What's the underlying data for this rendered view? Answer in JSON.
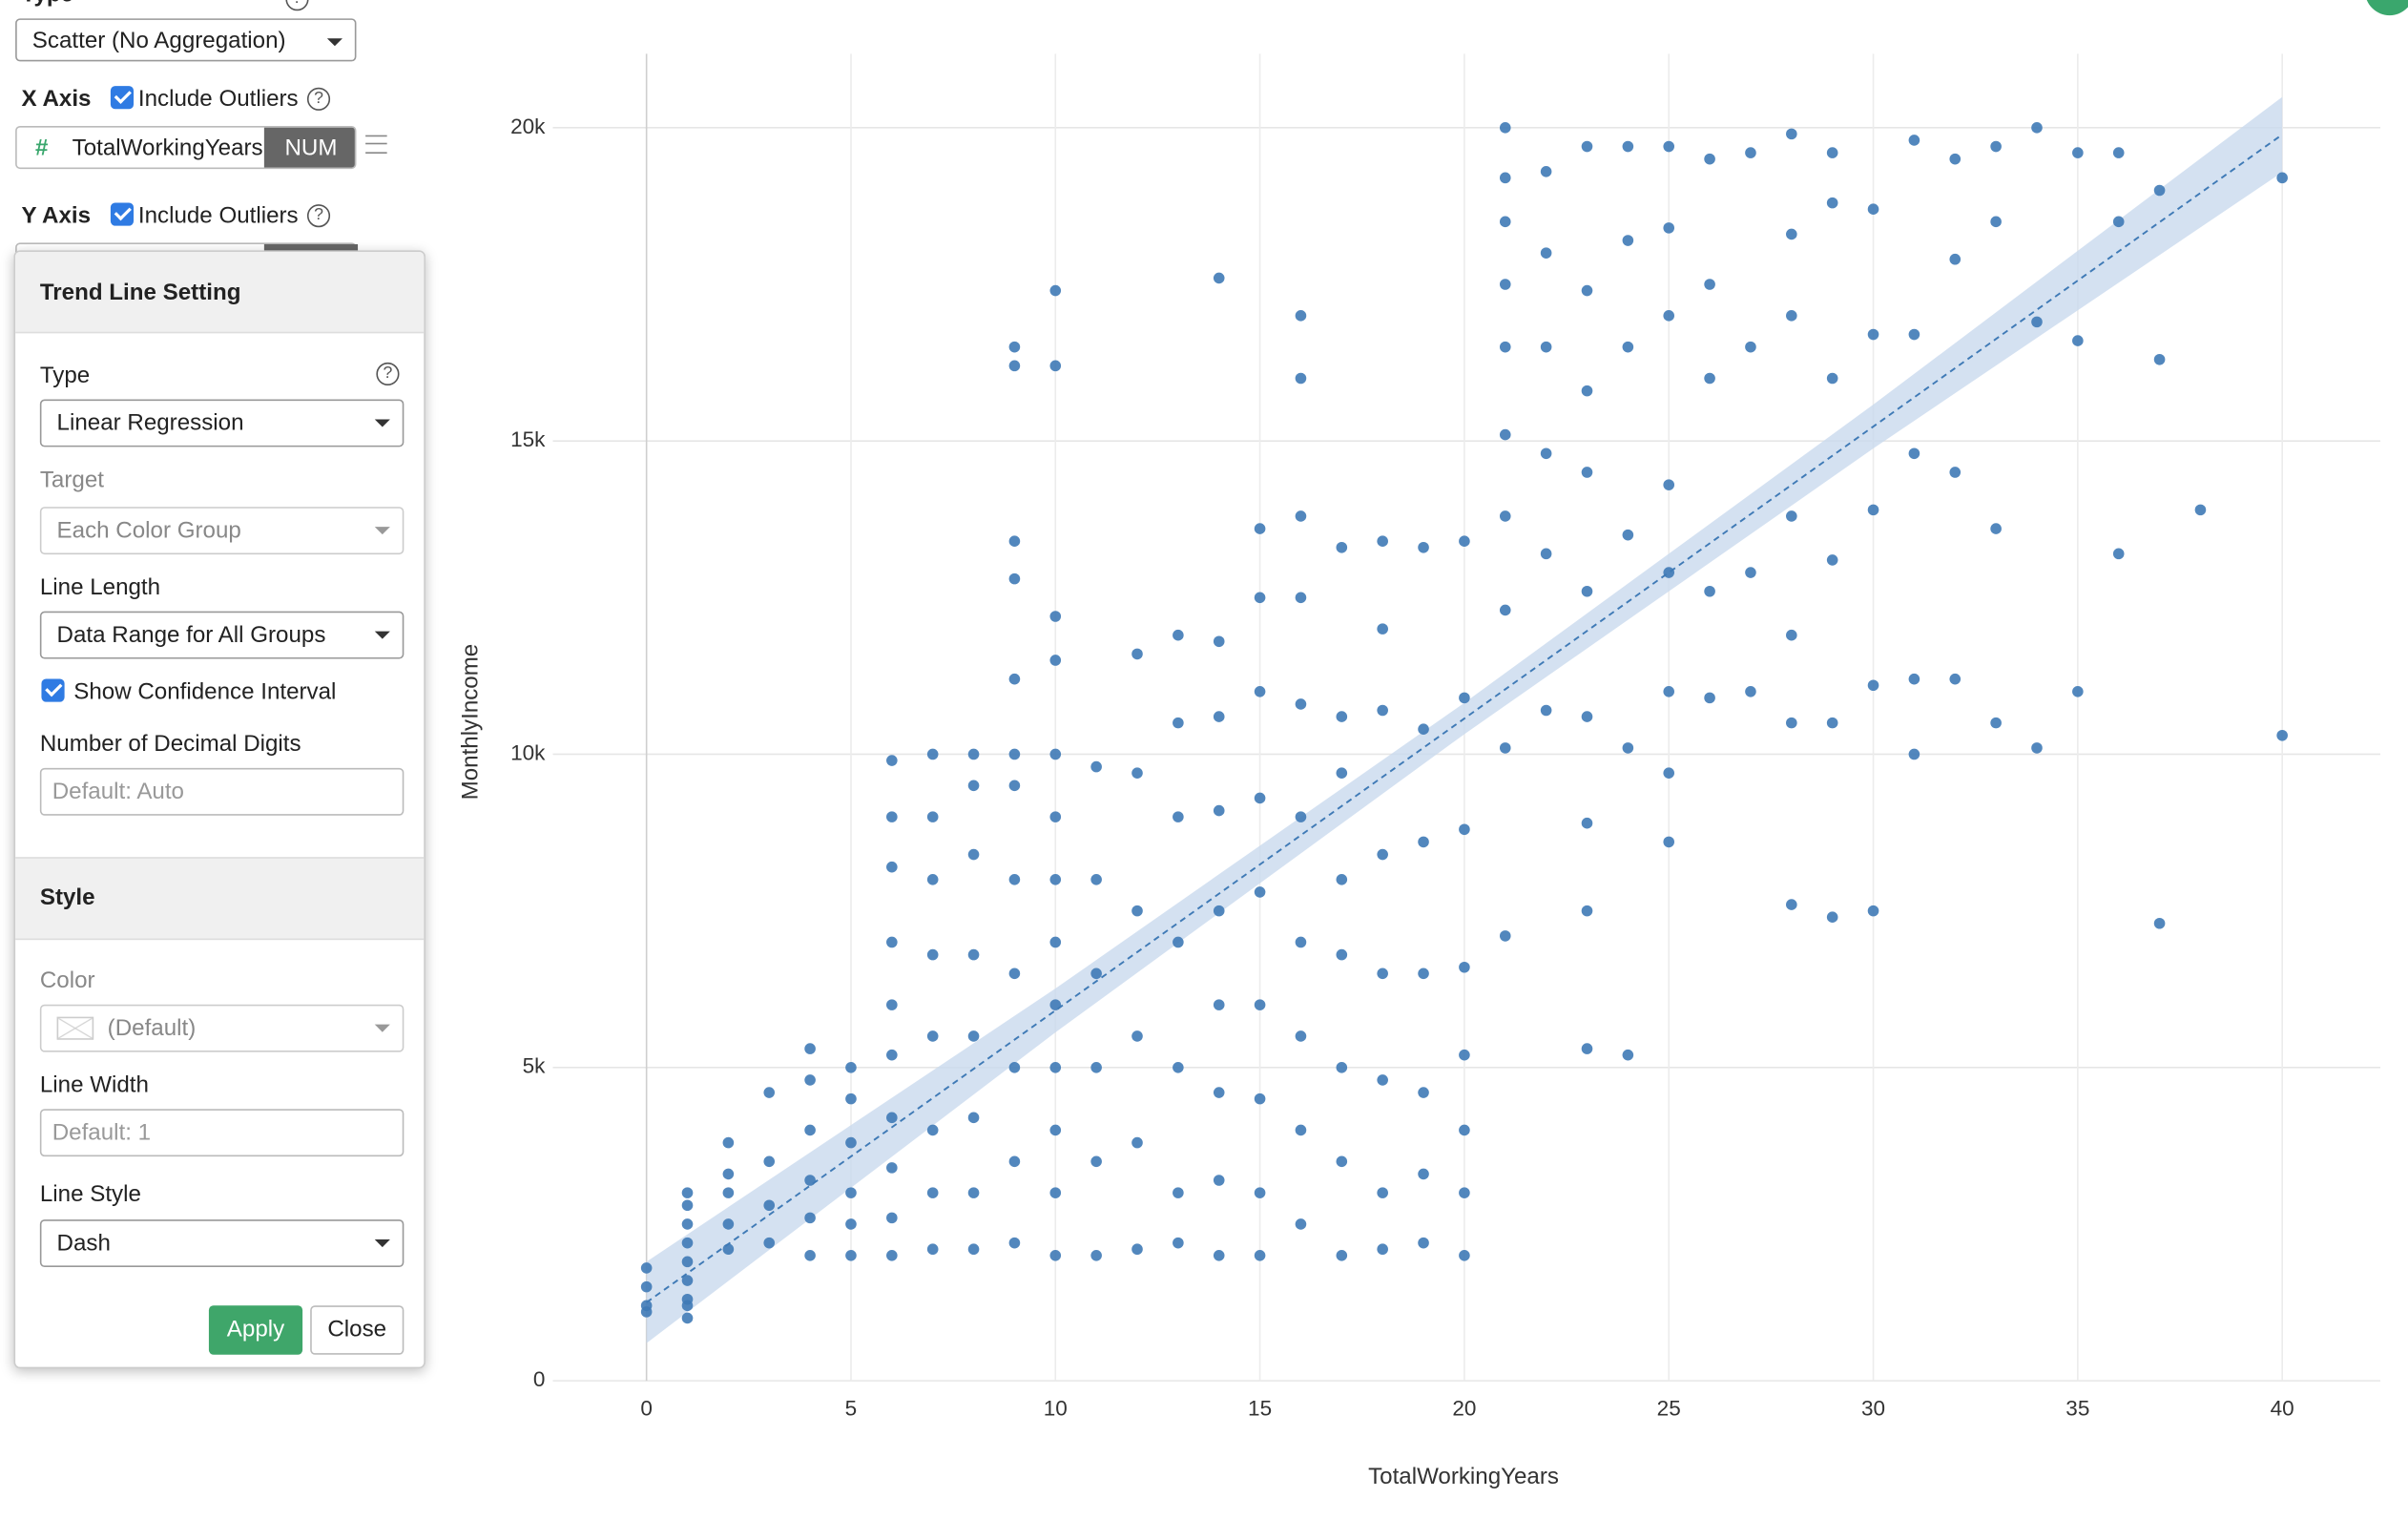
{
  "ui": {
    "type_label": "Type",
    "chart_type": "Scatter (No Aggregation)",
    "x_axis": {
      "label": "X Axis",
      "outliers": "Include Outliers",
      "column": "TotalWorkingYears",
      "badge": "NUM"
    },
    "y_axis": {
      "label": "Y Axis",
      "outliers": "Include Outliers"
    },
    "trend_panel": {
      "title": "Trend Line Setting",
      "type_label": "Type",
      "type_value": "Linear Regression",
      "target_label": "Target",
      "target_value": "Each Color Group",
      "length_label": "Line Length",
      "length_value": "Data Range for All Groups",
      "confidence": "Show Confidence Interval",
      "digits_label": "Number of Decimal Digits",
      "digits_placeholder": "Default: Auto",
      "style_title": "Style",
      "color_label": "Color",
      "color_value": "(Default)",
      "width_label": "Line Width",
      "width_placeholder": "Default: 1",
      "line_style_label": "Line Style",
      "line_style_value": "Dash",
      "apply": "Apply",
      "close": "Close"
    }
  },
  "chart_data": {
    "type": "scatter",
    "x_label": "TotalWorkingYears",
    "y_label": "MonthlyIncome",
    "color": "#3f7ab6",
    "grid": true,
    "xlim": [
      -2.29,
      42.4
    ],
    "ylim": [
      0,
      21180
    ],
    "xticks": [
      0,
      5,
      10,
      15,
      20,
      25,
      30,
      35,
      40
    ],
    "yticks": [
      0,
      {
        "value": 5000,
        "label": "5k"
      },
      {
        "value": 10000,
        "label": "10k"
      },
      {
        "value": 15000,
        "label": "15k"
      },
      {
        "value": 20000,
        "label": "20k"
      }
    ],
    "x": [
      0,
      0,
      0,
      0,
      1,
      1,
      1,
      1,
      1,
      1,
      1,
      1,
      1,
      2,
      2,
      2,
      2,
      2,
      3,
      3,
      3,
      3,
      4,
      4,
      4,
      4,
      4,
      4,
      5,
      5,
      5,
      5,
      5,
      5,
      6,
      6,
      6,
      6,
      6,
      6,
      6,
      6,
      6,
      6,
      7,
      7,
      7,
      7,
      7,
      7,
      7,
      7,
      8,
      8,
      8,
      8,
      8,
      8,
      8,
      8,
      9,
      9,
      9,
      9,
      9,
      9,
      9,
      9,
      9,
      9,
      9,
      9,
      10,
      10,
      10,
      10,
      10,
      10,
      10,
      10,
      10,
      10,
      10,
      10,
      10,
      11,
      11,
      11,
      11,
      11,
      11,
      12,
      12,
      12,
      12,
      12,
      12,
      13,
      13,
      13,
      13,
      13,
      13,
      13,
      14,
      14,
      14,
      14,
      14,
      14,
      14,
      14,
      14,
      15,
      15,
      15,
      15,
      15,
      15,
      15,
      15,
      15,
      16,
      16,
      16,
      16,
      16,
      16,
      16,
      16,
      16,
      16,
      17,
      17,
      17,
      17,
      17,
      17,
      17,
      17,
      18,
      18,
      18,
      18,
      18,
      18,
      18,
      18,
      19,
      19,
      19,
      19,
      19,
      19,
      19,
      20,
      20,
      20,
      20,
      20,
      20,
      20,
      20,
      21,
      21,
      21,
      21,
      21,
      21,
      21,
      21,
      21,
      21,
      22,
      22,
      22,
      22,
      22,
      22,
      23,
      23,
      23,
      23,
      23,
      23,
      23,
      23,
      23,
      24,
      24,
      24,
      24,
      24,
      24,
      25,
      25,
      25,
      25,
      25,
      25,
      25,
      25,
      26,
      26,
      26,
      26,
      26,
      27,
      27,
      27,
      27,
      28,
      28,
      28,
      28,
      28,
      28,
      28,
      29,
      29,
      29,
      29,
      29,
      29,
      30,
      30,
      30,
      30,
      30,
      31,
      31,
      31,
      31,
      31,
      32,
      32,
      32,
      32,
      33,
      33,
      33,
      33,
      34,
      34,
      34,
      35,
      35,
      35,
      36,
      36,
      36,
      37,
      37,
      37,
      38,
      40,
      40
    ],
    "values": [
      1200,
      1500,
      1800,
      1100,
      1000,
      1300,
      1600,
      1900,
      2200,
      2500,
      2800,
      3000,
      1200,
      2100,
      2500,
      3000,
      3300,
      3800,
      2200,
      2800,
      3500,
      4600,
      2000,
      2600,
      3200,
      4000,
      4800,
      5300,
      2000,
      2500,
      3000,
      3800,
      4500,
      5000,
      2000,
      2600,
      3400,
      4200,
      5200,
      6000,
      7000,
      8200,
      9000,
      9900,
      2100,
      3000,
      4000,
      5500,
      6800,
      8000,
      9000,
      10000,
      2100,
      3000,
      4200,
      5500,
      6800,
      8400,
      9500,
      10000,
      2200,
      3500,
      5000,
      6500,
      8000,
      9500,
      10000,
      11200,
      12800,
      13400,
      16200,
      16500,
      2000,
      3000,
      4000,
      5000,
      6000,
      7000,
      8000,
      9000,
      10000,
      11500,
      12200,
      17400,
      16200,
      2000,
      3500,
      5000,
      6500,
      8000,
      9800,
      2100,
      3800,
      5500,
      7500,
      9700,
      11600,
      2200,
      3000,
      5000,
      7000,
      9000,
      10500,
      11900,
      2000,
      3200,
      4600,
      6000,
      7500,
      9100,
      10600,
      11800,
      17600,
      2000,
      3000,
      4500,
      6000,
      7800,
      9300,
      11000,
      12500,
      13600,
      2500,
      4000,
      5500,
      7000,
      9000,
      10800,
      12500,
      13800,
      16000,
      17000,
      2000,
      3500,
      5000,
      6800,
      8000,
      9700,
      10600,
      13300,
      2100,
      3000,
      4800,
      6500,
      8400,
      10700,
      12000,
      13400,
      2200,
      3300,
      4600,
      6500,
      8600,
      10400,
      13300,
      2000,
      3000,
      4000,
      5200,
      6600,
      8800,
      10900,
      13400,
      7100,
      10100,
      12300,
      13800,
      15100,
      16500,
      17500,
      18500,
      19200,
      20000,
      10700,
      13200,
      14800,
      16500,
      18000,
      19300,
      5300,
      7500,
      8900,
      10600,
      12600,
      14500,
      15800,
      17400,
      19700,
      5200,
      10100,
      13500,
      16500,
      18200,
      19700,
      8600,
      9700,
      11000,
      12900,
      14300,
      17000,
      18400,
      19700,
      10900,
      12600,
      16000,
      17500,
      19500,
      11000,
      12900,
      16500,
      19600,
      7600,
      10500,
      11900,
      13800,
      17000,
      18300,
      19900,
      7400,
      10500,
      13100,
      16000,
      18800,
      19600,
      7500,
      11100,
      13900,
      16700,
      18700,
      10000,
      11200,
      14800,
      16700,
      19800,
      11200,
      14500,
      17900,
      19500,
      10500,
      13600,
      18500,
      19700,
      10100,
      16900,
      20000,
      11000,
      16600,
      19600,
      13200,
      18500,
      19600,
      7300,
      16300,
      19000,
      13900,
      10300,
      19200
    ],
    "trend_line": {
      "x": [
        0,
        10,
        20,
        30,
        40
      ],
      "values": [
        1250,
        5910,
        10570,
        15230,
        19890
      ],
      "lower": [
        600,
        5560,
        10320,
        14880,
        19290
      ],
      "upper": [
        1900,
        6260,
        10820,
        15580,
        20490
      ],
      "color": "#3f7ab6",
      "band_color": "#c9d9ee"
    }
  }
}
